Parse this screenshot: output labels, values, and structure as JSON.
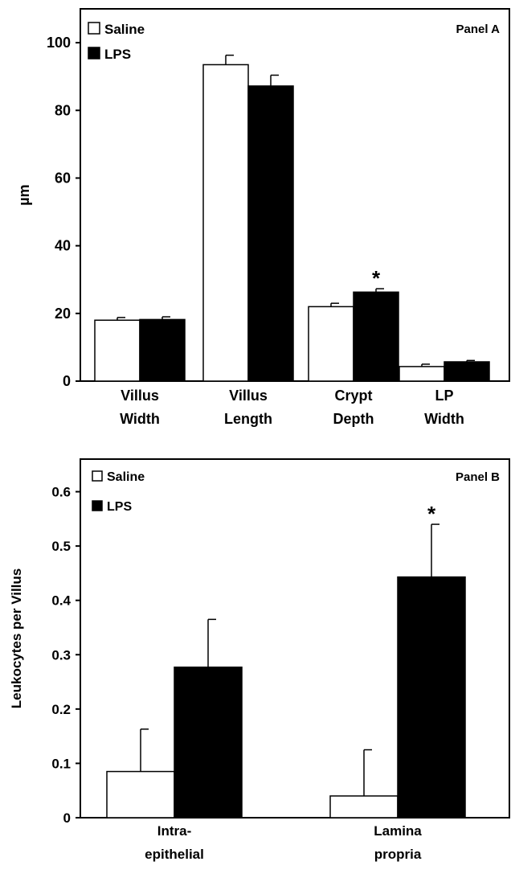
{
  "chart_data": [
    {
      "type": "bar",
      "panel_label": "Panel A",
      "ylabel": "µm",
      "ylim": [
        0,
        110
      ],
      "yticks": [
        0,
        20,
        40,
        60,
        80,
        100
      ],
      "categories": [
        [
          "Villus",
          "Width"
        ],
        [
          "Villus",
          "Length"
        ],
        [
          "Crypt",
          "Depth"
        ],
        [
          "LP",
          "Width"
        ]
      ],
      "series": [
        {
          "name": "Saline",
          "color": "#ffffff",
          "values": [
            18.0,
            93.5,
            22.0,
            4.3
          ],
          "errors": [
            0.8,
            2.8,
            1.0,
            0.7
          ]
        },
        {
          "name": "LPS",
          "color": "#000000",
          "values": [
            18.2,
            87.2,
            26.3,
            5.7
          ],
          "errors": [
            0.8,
            3.2,
            1.0,
            0.4
          ]
        }
      ],
      "significance": [
        {
          "category_index": 2,
          "series_index": 1,
          "mark": "*"
        }
      ],
      "legend_position": "top-left",
      "grid": false
    },
    {
      "type": "bar",
      "panel_label": "Panel B",
      "ylabel": "Leukocytes per Villus",
      "ylim": [
        0,
        0.66
      ],
      "yticks": [
        0,
        0.1,
        0.2,
        0.3,
        0.4,
        0.5,
        0.6
      ],
      "ytick_labels": [
        "0",
        "0.1",
        "0.2",
        "0.3",
        "0.4",
        "0.5",
        "0.6"
      ],
      "categories": [
        [
          "Intra-",
          "epithelial"
        ],
        [
          "Lamina",
          "propria"
        ]
      ],
      "series": [
        {
          "name": "Saline",
          "color": "#ffffff",
          "values": [
            0.085,
            0.04
          ],
          "errors": [
            0.078,
            0.085
          ]
        },
        {
          "name": "LPS",
          "color": "#000000",
          "values": [
            0.277,
            0.443
          ],
          "errors": [
            0.088,
            0.097
          ]
        }
      ],
      "significance": [
        {
          "category_index": 1,
          "series_index": 1,
          "mark": "*"
        }
      ],
      "legend_position": "top-left",
      "grid": false
    }
  ]
}
